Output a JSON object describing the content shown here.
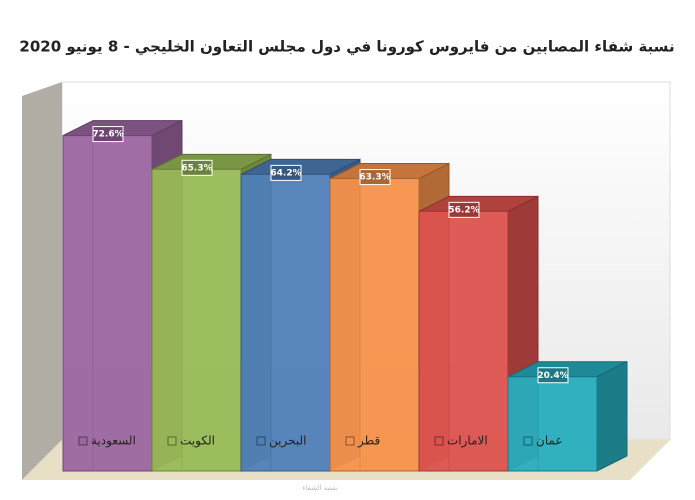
{
  "chart_data": {
    "type": "bar3d",
    "title": "نسبة شفاء المصابين من فايروس كورونا في دول مجلس التعاون الخليجي - 8 يونيو 2020",
    "categories": [
      "السعودية",
      "الكويت",
      "البحرين",
      "قطر",
      "الامارات",
      "عمان"
    ],
    "values": [
      72.6,
      65.3,
      64.2,
      63.3,
      56.2,
      20.4
    ],
    "value_labels": [
      "72.6%",
      "65.3%",
      "64.2%",
      "63.3%",
      "56.2%",
      "20.4%"
    ],
    "colors": [
      "#9b66a0",
      "#98bb55",
      "#4f7fb8",
      "#f6924a",
      "#dc524e",
      "#27adbd"
    ],
    "xlabel": "نسبة الشفاء"
  }
}
